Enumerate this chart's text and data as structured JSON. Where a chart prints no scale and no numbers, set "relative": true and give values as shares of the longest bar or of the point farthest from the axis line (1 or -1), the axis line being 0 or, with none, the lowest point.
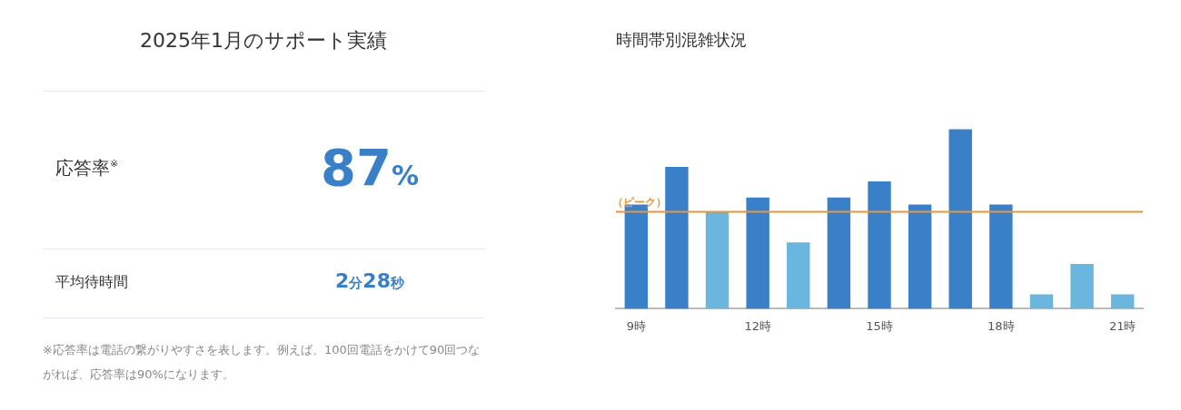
{
  "chart_data": [
    {
      "type": "other",
      "title": "2025年1月のサポート実績",
      "annotations": [
        "応答率$^{※}$",
        "87%",
        "平均待時間",
        "2分28秒",
        "※応答率は電話の繋がりやすさを表します。例えば、100回電話をかけて90回つながれば、応答率は90%になります。"
      ]
    },
    {
      "type": "bar",
      "title": "時間帯別混雑状況",
      "relative": true,
      "categories": [
        "9時",
        null,
        null,
        "12時",
        null,
        null,
        "15時",
        null,
        null,
        "18時",
        null,
        null,
        "21時"
      ],
      "values": [
        0.58,
        0.79,
        0.54,
        0.62,
        0.37,
        0.62,
        0.71,
        0.58,
        1,
        0.58,
        0.08,
        0.25,
        0.08
      ],
      "colors": [
        "#3a80c8",
        "#3a80c8",
        "#6ab6de",
        "#3a80c8",
        "#6ab6de",
        "#3a80c8",
        "#3a80c8",
        "#3a80c8",
        "#3a80c8",
        "#3a80c8",
        "#6ab6de",
        "#6ab6de",
        "#6ab6de"
      ],
      "ref_lines": [
        {
          "axis": "y",
          "value": 0.54,
          "label": "（ピーク）",
          "color": "#e8963a"
        }
      ]
    }
  ]
}
